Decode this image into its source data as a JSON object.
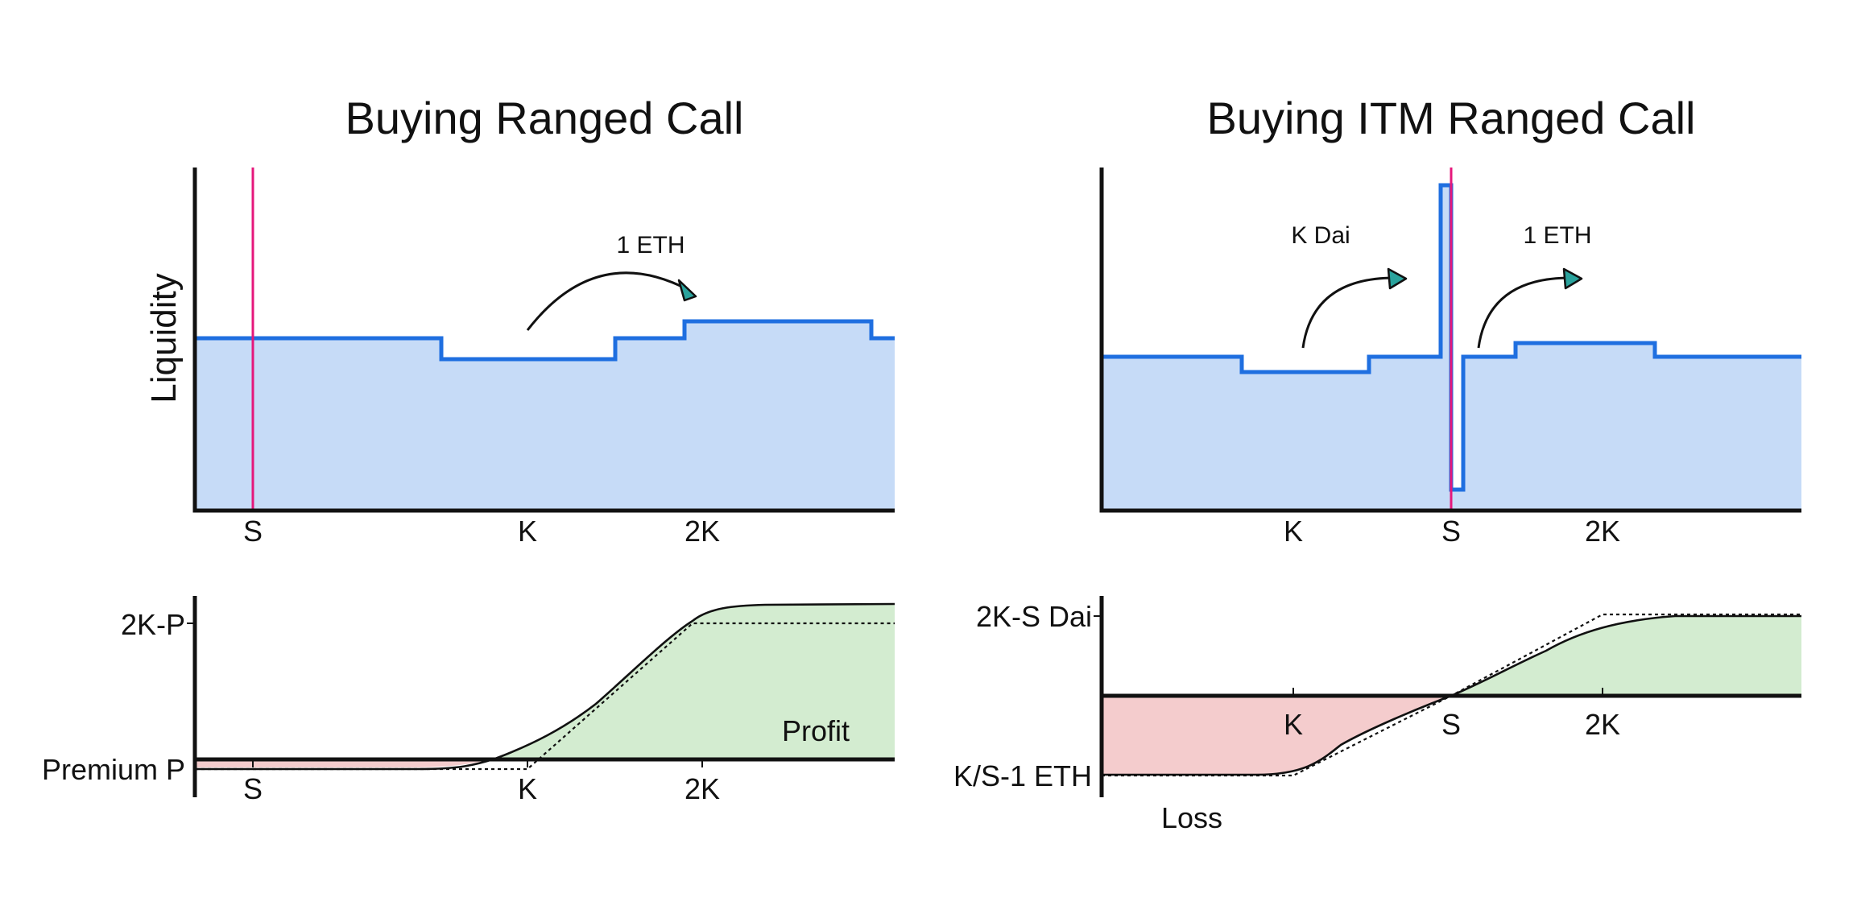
{
  "left": {
    "title": "Buying Ranged Call",
    "ylabel": "Liquidity",
    "liquidity_ticks": [
      "S",
      "K",
      "2K"
    ],
    "annotation": "1 ETH",
    "payoff_ticks": [
      "S",
      "K",
      "2K"
    ],
    "payoff_ylabels": [
      "2K-P",
      "Premium P"
    ],
    "region_label": "Profit"
  },
  "right": {
    "title": "Buying ITM Ranged Call",
    "liquidity_ticks": [
      "K",
      "S",
      "2K"
    ],
    "annotations": [
      "K Dai",
      "1 ETH"
    ],
    "payoff_ticks": [
      "K",
      "S",
      "2K"
    ],
    "payoff_ylabels": [
      "2K-S Dai",
      "K/S-1 ETH"
    ],
    "region_label": "Loss"
  },
  "colors": {
    "liquidity_fill": "#c6dbf7",
    "liquidity_line": "#1f6fe0",
    "price_marker": "#e5177b",
    "profit_fill": "#d3ecd0",
    "loss_fill": "#f4cccd",
    "arrowhead": "#2aa39d"
  }
}
